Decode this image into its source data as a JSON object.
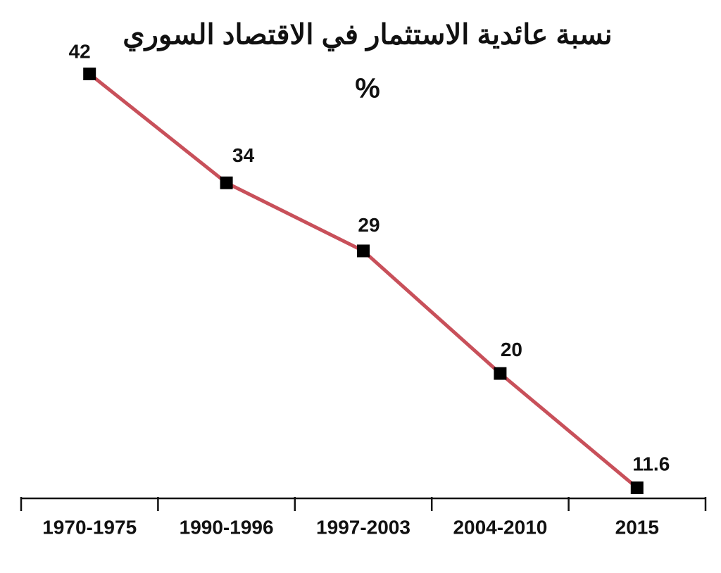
{
  "chart_data": {
    "type": "line",
    "title": "نسبة عائدية الاستثمار في الاقتصاد السوري",
    "subtitle": "%",
    "categories": [
      "1970-1975",
      "1990-1996",
      "1997-2003",
      "2004-2010",
      "2015"
    ],
    "values": [
      42,
      34,
      29,
      20,
      11.6
    ],
    "color": "#c8505a",
    "marker_color": "#000000"
  }
}
